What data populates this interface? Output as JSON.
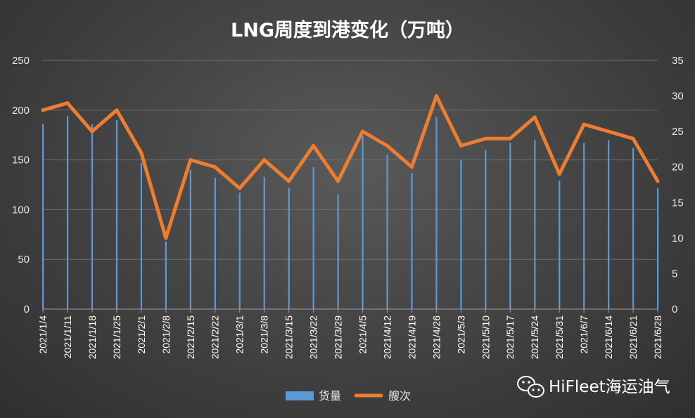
{
  "chart_data": {
    "type": "bar",
    "title": "LNG周度到港变化（万吨）",
    "categories": [
      "2021/1/4",
      "2021/1/11",
      "2021/1/18",
      "2021/1/25",
      "2021/2/1",
      "2021/2/8",
      "2021/2/15",
      "2021/2/22",
      "2021/3/1",
      "2021/3/8",
      "2021/3/15",
      "2021/3/22",
      "2021/3/29",
      "2021/4/5",
      "2021/4/12",
      "2021/4/19",
      "2021/4/26",
      "2021/5/3",
      "2021/5/10",
      "2021/5/17",
      "2021/5/24",
      "2021/5/31",
      "2021/6/7",
      "2021/6/14",
      "2021/6/21",
      "2021/6/28"
    ],
    "y_left": {
      "ylim": [
        0,
        250
      ],
      "ticks": [
        "0",
        "50",
        "100",
        "150",
        "200",
        "250"
      ]
    },
    "y_right": {
      "ylim": [
        0,
        35
      ],
      "ticks": [
        "0",
        "5",
        "10",
        "15",
        "20",
        "25",
        "30",
        "35"
      ]
    },
    "grid": true,
    "legend_position": "bottom",
    "series": [
      {
        "name": "货量",
        "type": "bar",
        "axis": "left",
        "color": "#5b9bd5",
        "values": [
          186,
          194,
          186,
          190,
          147,
          68,
          140,
          132,
          117,
          133,
          122,
          143,
          115,
          174,
          155,
          137,
          193,
          150,
          160,
          167,
          170,
          129,
          167,
          170,
          162,
          122
        ]
      },
      {
        "name": "艘次",
        "type": "line",
        "axis": "right",
        "color": "#ed7d31",
        "values": [
          28,
          29,
          25,
          28,
          22,
          10,
          21,
          20,
          17,
          21,
          18,
          23,
          18,
          25,
          23,
          20,
          30,
          23,
          24,
          24,
          27,
          19,
          26,
          25,
          24,
          18
        ]
      }
    ]
  },
  "watermark": {
    "text": "HiFleet海运油气",
    "icon": "wechat-icon"
  }
}
